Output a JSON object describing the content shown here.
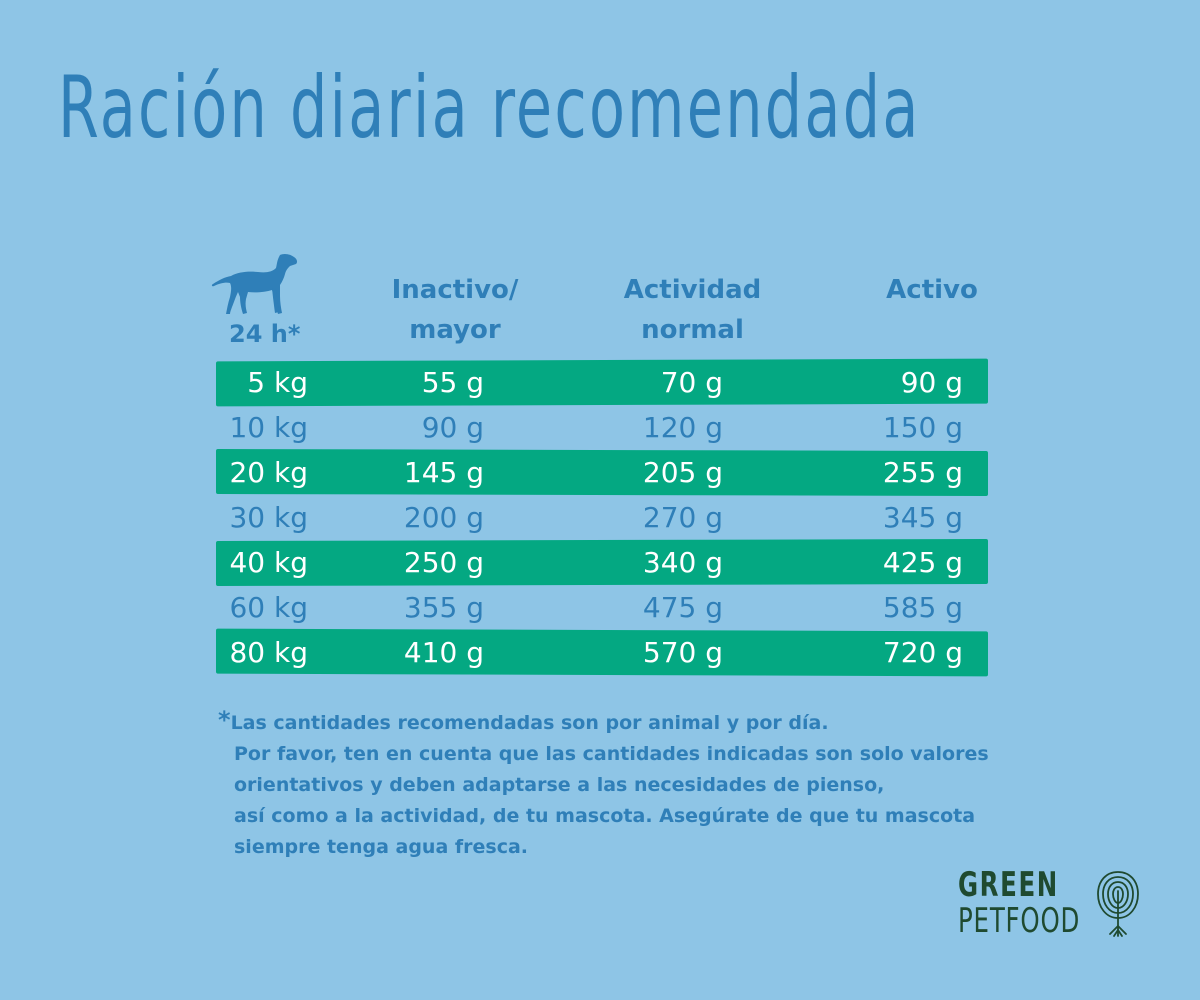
{
  "title": "Ración diaria recomendada",
  "header": {
    "icon": "dog-icon",
    "hours_label": "24 h*",
    "columns": [
      "Inactivo/\nmayor",
      "Actividad\nnormal",
      "Activo"
    ]
  },
  "rows": [
    [
      "5 kg",
      "55 g",
      "70 g",
      "90 g"
    ],
    [
      "10 kg",
      "90 g",
      "120 g",
      "150 g"
    ],
    [
      "20 kg",
      "145 g",
      "205 g",
      "255 g"
    ],
    [
      "30 kg",
      "200 g",
      "270 g",
      "345 g"
    ],
    [
      "40 kg",
      "250 g",
      "340 g",
      "425 g"
    ],
    [
      "60 kg",
      "355 g",
      "475 g",
      "585 g"
    ],
    [
      "80 kg",
      "410 g",
      "570 g",
      "720 g"
    ]
  ],
  "footnote": {
    "asterisk": "*",
    "lines": [
      "Las cantidades recomendadas son por animal y por día.",
      "Por favor, ten en cuenta que las cantidades indicadas son solo valores",
      "orientativos y deben adaptarse a las necesidades de pienso,",
      "así como a la actividad, de tu mascota. Asegúrate de que tu mascota",
      "siempre tenga agua fresca."
    ]
  },
  "brand": {
    "line1": "GREEN",
    "line2": "PETFOOD",
    "icon": "tree-fingerprint-icon"
  },
  "colors": {
    "background": "#8ec5e6",
    "text_blue": "#2f7fb8",
    "row_green": "#04a882",
    "brand_dark_green": "#1f4a30"
  }
}
